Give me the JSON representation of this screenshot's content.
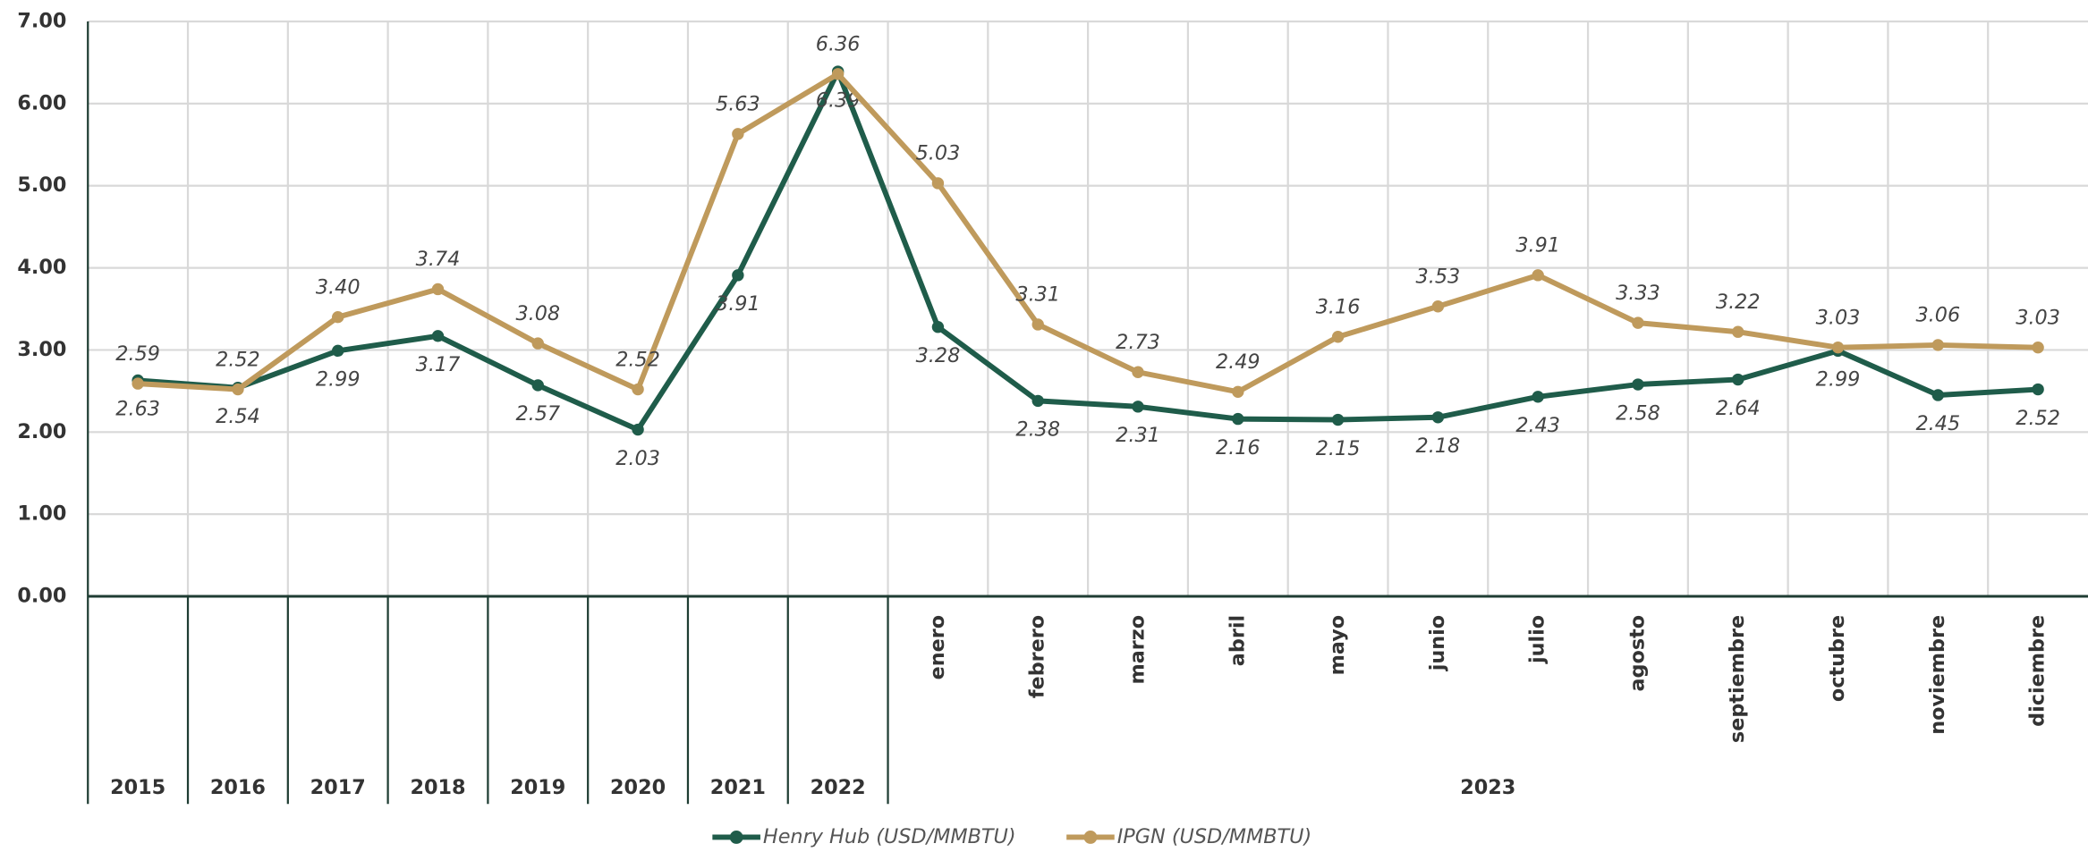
{
  "chart_data": {
    "type": "line",
    "categories": [
      "2015",
      "2016",
      "2017",
      "2018",
      "2019",
      "2020",
      "2021",
      "2022",
      "enero",
      "febrero",
      "marzo",
      "abril",
      "mayo",
      "junio",
      "julio",
      "agosto",
      "septiembre",
      "octubre",
      "noviembre",
      "diciembre"
    ],
    "group_label": "2023",
    "series": [
      {
        "name": "Henry Hub (USD/MMBTU)",
        "color": "#1f5c4a",
        "values": [
          2.63,
          2.54,
          2.99,
          3.17,
          2.57,
          2.03,
          3.91,
          6.39,
          3.28,
          2.38,
          2.31,
          2.16,
          2.15,
          2.18,
          2.43,
          2.58,
          2.64,
          2.99,
          2.45,
          2.52
        ],
        "value_labels": [
          "2.63",
          "2.54",
          "2.99",
          "3.17",
          "2.57",
          "2.03",
          "3.91",
          "6.39",
          "3.28",
          "2.38",
          "2.31",
          "2.16",
          "2.15",
          "2.18",
          "2.43",
          "2.58",
          "2.64",
          "2.99",
          "2.45",
          "2.52"
        ]
      },
      {
        "name": "IPGN (USD/MMBTU)",
        "color": "#bf9a5c",
        "values": [
          2.59,
          2.52,
          3.4,
          3.74,
          3.08,
          2.52,
          5.63,
          6.36,
          5.03,
          3.31,
          2.73,
          2.49,
          3.16,
          3.53,
          3.91,
          3.33,
          3.22,
          3.03,
          3.06,
          3.03
        ],
        "value_labels": [
          "2.59",
          "2.52",
          "3.40",
          "3.74",
          "3.08",
          "2.52",
          "5.63",
          "6.36",
          "5.03",
          "3.31",
          "2.73",
          "2.49",
          "3.16",
          "3.53",
          "3.91",
          "3.33",
          "3.22",
          "3.03",
          "3.06",
          "3.03"
        ]
      }
    ],
    "ylim": [
      0,
      7
    ],
    "yticks": [
      {
        "value": 0,
        "label": "0.00"
      },
      {
        "value": 1,
        "label": "1.00"
      },
      {
        "value": 2,
        "label": "2.00"
      },
      {
        "value": 3,
        "label": "3.00"
      },
      {
        "value": 4,
        "label": "4.00"
      },
      {
        "value": 5,
        "label": "5.00"
      },
      {
        "value": 6,
        "label": "6.00"
      },
      {
        "value": 7,
        "label": "7.00"
      }
    ],
    "grid": true,
    "legend": "bottom"
  }
}
